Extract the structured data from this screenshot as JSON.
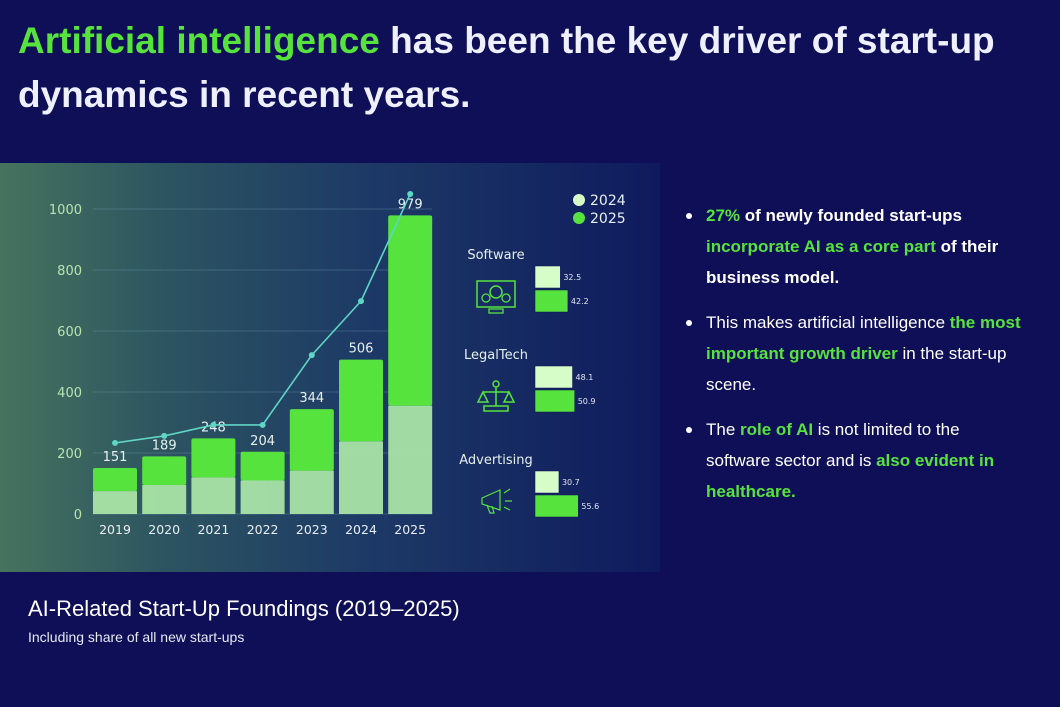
{
  "title": {
    "highlight": "Artificial intelligence",
    "rest": " has been the key driver of start-up dynamics in recent years."
  },
  "bullets": [
    {
      "parts": [
        {
          "t": "27%",
          "s": "g"
        },
        {
          "t": " of newly founded start-ups ",
          "s": "b"
        },
        {
          "t": "incorporate AI as a core part",
          "s": "g"
        },
        {
          "t": " of their business model.",
          "s": "b"
        }
      ]
    },
    {
      "parts": [
        {
          "t": "This makes artificial intelligence ",
          "s": ""
        },
        {
          "t": "the most important growth driver",
          "s": "g"
        },
        {
          "t": " in the start-up scene.",
          "s": ""
        }
      ]
    },
    {
      "parts": [
        {
          "t": "The ",
          "s": ""
        },
        {
          "t": "role of AI",
          "s": "g"
        },
        {
          "t": " is not limited to the software sector and is ",
          "s": ""
        },
        {
          "t": "also evident in healthcare.",
          "s": "g"
        }
      ]
    }
  ],
  "caption": {
    "title": "AI-Related Start-Up Foundings (2019–2025)",
    "subtitle": "Including share of all new start-ups"
  },
  "colors": {
    "bg": "#0e0f57",
    "accent": "#56e33e",
    "light": "#ace8a8",
    "line": "#5fd6c4",
    "light_sector": "#d6fcc8"
  },
  "chart_data": [
    {
      "type": "bar",
      "title": "AI-Related Start-Up Foundings (2019–2025)",
      "categories": [
        "2019",
        "2020",
        "2021",
        "2022",
        "2023",
        "2024",
        "2025"
      ],
      "totals": [
        151,
        189,
        248,
        204,
        344,
        506,
        979
      ],
      "lower_segment": [
        75,
        95,
        120,
        110,
        142,
        238,
        355
      ],
      "line_series": [
        233,
        256,
        292,
        292,
        521,
        698,
        1049
      ],
      "ylim": [
        0,
        1000
      ],
      "yticks": [
        0,
        200,
        400,
        600,
        800,
        1000
      ],
      "grid": true
    },
    {
      "type": "bar",
      "orientation": "horizontal",
      "legend": [
        "2024",
        "2025"
      ],
      "legend_position": "top-right",
      "categories": [
        "Software",
        "LegalTech",
        "Advertising"
      ],
      "series": [
        {
          "name": "2024",
          "values": [
            32.5,
            48.1,
            30.7
          ]
        },
        {
          "name": "2025",
          "values": [
            42.2,
            50.9,
            55.6
          ]
        }
      ]
    }
  ]
}
